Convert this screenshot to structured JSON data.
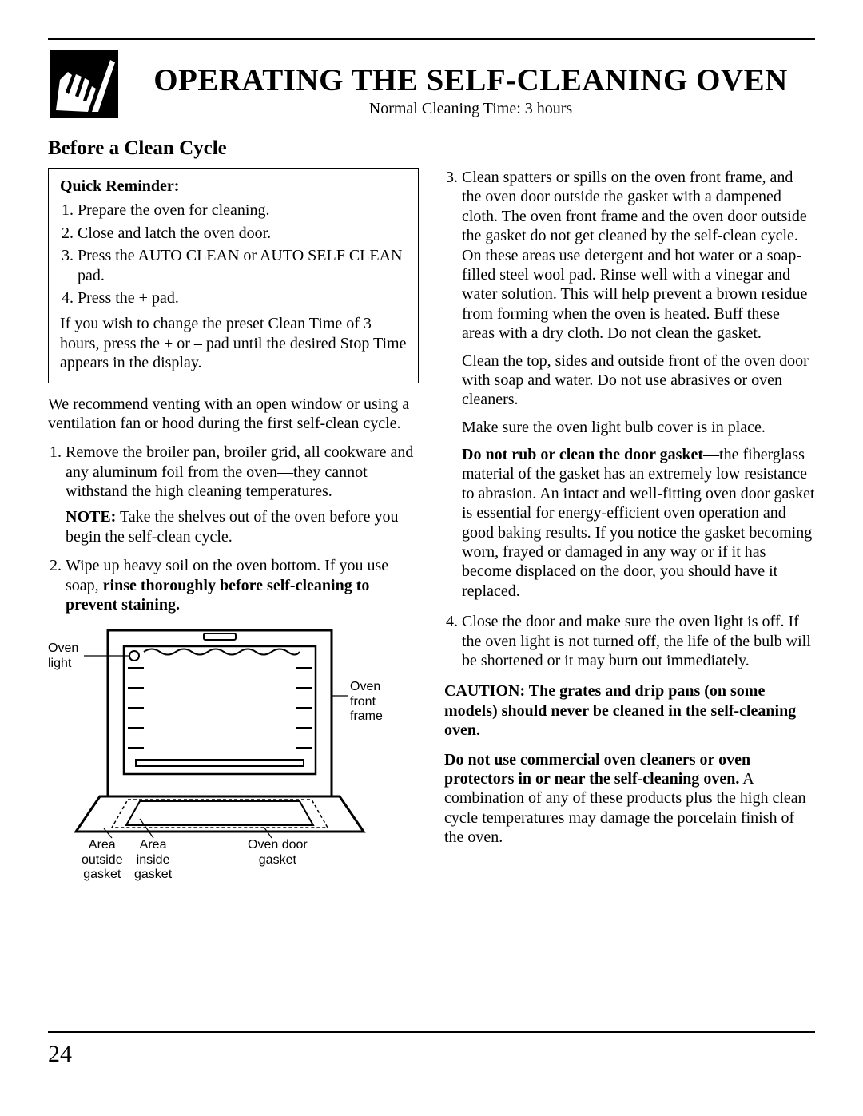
{
  "page": {
    "number": "24",
    "title": "OPERATING THE SELF-CLEANING OVEN",
    "subtitle": "Normal Cleaning Time: 3 hours",
    "section_title": "Before a Clean Cycle"
  },
  "reminder": {
    "title": "Quick Reminder:",
    "items": [
      "Prepare the oven for cleaning.",
      "Close and latch the oven door.",
      "Press the AUTO CLEAN or AUTO SELF CLEAN pad.",
      "Press the + pad."
    ],
    "note": "If you wish to change the preset Clean Time of 3 hours, press the + or – pad until the desired Stop Time appears in the display."
  },
  "left": {
    "vent": "We recommend venting with an open window or using a ventilation fan or hood during the first self-clean cycle.",
    "step1": "Remove the broiler pan, broiler grid, all cookware and any aluminum foil from the oven—they cannot withstand the high cleaning temperatures.",
    "step1_note_bold": "NOTE:",
    "step1_note_rest": " Take the shelves out of the oven before you begin the self-clean cycle.",
    "step2_a": "Wipe up heavy soil on the oven bottom. If you use soap, ",
    "step2_b": "rinse thoroughly before self-cleaning to prevent staining."
  },
  "right": {
    "step3": "Clean spatters or spills on the oven front frame, and the oven door outside the gasket with a dampened cloth. The oven front frame and the oven door outside the gasket do not get cleaned by the self-clean cycle. On these areas use detergent and hot water or a soap-filled steel wool pad. Rinse well with a vinegar and water solution. This will help prevent a brown residue from forming when the oven is heated. Buff these areas with a dry cloth. Do not clean the gasket.",
    "step3_p2": "Clean the top, sides and outside front of the oven door with soap and water. Do not use abrasives or oven cleaners.",
    "step3_p3": "Make sure the oven light bulb cover is in place.",
    "step3_p4_bold": "Do not rub or clean the door gasket",
    "step3_p4_rest": "—the fiberglass material of the gasket has an extremely low resistance to abrasion. An intact and well-fitting oven door gasket is essential for energy-efficient oven operation and good baking results. If you notice the gasket becoming worn, frayed or damaged in any way or if it has become displaced on the door, you should have it replaced.",
    "step4": "Close the door and make sure the oven light is off. If the oven light is not turned off, the life of the bulb will be shortened or it may burn out immediately.",
    "caution_bold": "CAUTION: The grates and drip pans (on some models) should never be cleaned in the self-cleaning oven.",
    "warn_bold": "Do not use commercial oven cleaners or oven protectors in or near the self-cleaning oven.",
    "warn_rest": " A combination of any of these products plus the high clean cycle temperatures may damage the porcelain finish of the oven."
  },
  "diagram": {
    "labels": {
      "oven_light": "Oven\nlight",
      "oven_front_frame": "Oven\nfront\nframe",
      "area_outside": "Area\noutside\ngasket",
      "area_inside": "Area\ninside\ngasket",
      "oven_door_gasket": "Oven door\ngasket"
    }
  },
  "icon": {
    "name": "cleaning-hands-icon"
  }
}
